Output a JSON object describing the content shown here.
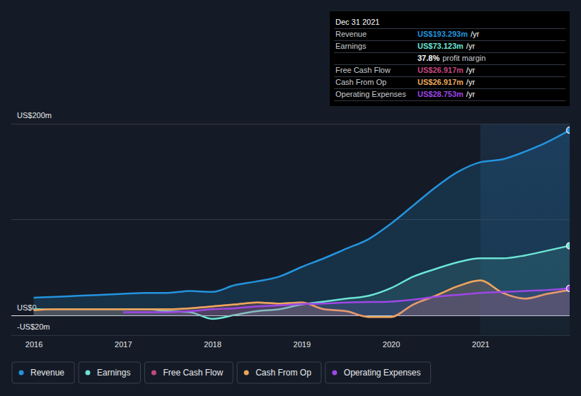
{
  "chart_data": {
    "type": "line",
    "x": [
      2016,
      2016.25,
      2016.5,
      2016.75,
      2017,
      2017.25,
      2017.5,
      2017.75,
      2018,
      2018.25,
      2018.5,
      2018.75,
      2019,
      2019.25,
      2019.5,
      2019.75,
      2020,
      2020.25,
      2020.5,
      2020.75,
      2021,
      2021.25,
      2021.5,
      2021.75,
      2022
    ],
    "xlim": [
      2015.75,
      2022
    ],
    "xticks": [
      2016,
      2017,
      2018,
      2019,
      2020,
      2021
    ],
    "ylim": [
      -20,
      200
    ],
    "yticks": [
      {
        "value": -20,
        "label": "-US$20m"
      },
      {
        "value": 0,
        "label": "US$0"
      },
      {
        "value": 100,
        "label": null
      },
      {
        "value": 200,
        "label": "US$200m"
      }
    ],
    "grid": true,
    "legend": "bottom",
    "highlight_range": [
      2021,
      2022
    ],
    "series": [
      {
        "name": "Revenue",
        "color": "#2394df",
        "marker": "end",
        "values": [
          19,
          20,
          21,
          22,
          23,
          24,
          24,
          26,
          25,
          32,
          36,
          41,
          51,
          60,
          70,
          80,
          96,
          115,
          134,
          150,
          160,
          163,
          171,
          181,
          193.293
        ]
      },
      {
        "name": "Earnings",
        "color": "#6ce5d5",
        "marker": "end",
        "values": [
          7,
          7,
          7,
          7,
          7,
          7,
          5,
          4,
          -3,
          1,
          5,
          7,
          12,
          15,
          18,
          21,
          29,
          41,
          49,
          56,
          60,
          60,
          63,
          68,
          73.123
        ]
      },
      {
        "name": "Free Cash Flow",
        "color": "#c5477f",
        "values": [
          6,
          7,
          7,
          7,
          7,
          7,
          7,
          8,
          10,
          12,
          14,
          13,
          14,
          7,
          5,
          -1,
          -1,
          12,
          21,
          31,
          37,
          24,
          18,
          23,
          26.917
        ]
      },
      {
        "name": "Cash From Op",
        "color": "#e9a85a",
        "values": [
          6,
          7,
          7,
          7,
          7,
          7,
          7,
          8,
          10,
          12,
          14,
          13,
          14,
          7,
          5,
          -1,
          -1,
          12,
          21,
          31,
          37,
          24,
          18,
          23,
          26.917
        ]
      },
      {
        "name": "Operating Expenses",
        "color": "#9e47e6",
        "marker": "end",
        "values": [
          null,
          null,
          null,
          null,
          4,
          4,
          4,
          5,
          7,
          8,
          10,
          11,
          12.5,
          13,
          14,
          14.5,
          15,
          17,
          20,
          22,
          24,
          25,
          26,
          27,
          28.753
        ]
      }
    ],
    "tooltip": {
      "title": "Dec 31 2021",
      "rows": [
        {
          "label": "Revenue",
          "value": "US$193.293m",
          "unit": "/yr"
        },
        {
          "label": "Earnings",
          "value": "US$73.123m",
          "unit": "/yr"
        },
        {
          "label": "Free Cash Flow",
          "value": "US$26.917m",
          "unit": "/yr"
        },
        {
          "label": "Cash From Op",
          "value": "US$26.917m",
          "unit": "/yr"
        },
        {
          "label": "Operating Expenses",
          "value": "US$28.753m",
          "unit": "/yr"
        }
      ],
      "margin": {
        "value": "37.8%",
        "text": "profit margin"
      }
    }
  }
}
